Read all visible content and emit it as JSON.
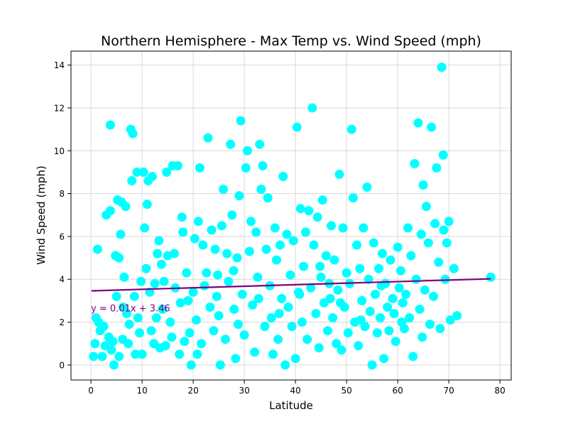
{
  "chart_data": {
    "type": "scatter",
    "title": "Northern Hemisphere - Max Temp vs. Wind Speed (mph)",
    "xlabel": "Latitude",
    "ylabel": "Wind Speed (mph)",
    "xlim": [
      -3.9,
      82.2
    ],
    "ylim": [
      -0.7,
      14.65
    ],
    "xticks": [
      0,
      10,
      20,
      30,
      40,
      50,
      60,
      70,
      80
    ],
    "yticks": [
      0,
      2,
      4,
      6,
      8,
      10,
      12,
      14
    ],
    "grid": true,
    "point_color": "#00ffff",
    "regression": {
      "slope": 0.0072,
      "intercept": 3.46,
      "x_range": [
        0.1,
        78.2
      ],
      "label": "y = 0.01x + 3.46",
      "label_color": "#800080",
      "line_color": "#800080"
    },
    "points": [
      [
        0.5,
        0.4
      ],
      [
        0.8,
        1.0
      ],
      [
        1.0,
        2.2
      ],
      [
        1.3,
        5.4
      ],
      [
        1.5,
        2.0
      ],
      [
        1.8,
        1.6
      ],
      [
        2.2,
        0.4
      ],
      [
        2.5,
        1.8
      ],
      [
        3.0,
        7.0
      ],
      [
        3.5,
        1.3
      ],
      [
        3.8,
        7.2
      ],
      [
        3.8,
        11.2
      ],
      [
        4.0,
        0.7
      ],
      [
        4.3,
        1.1
      ],
      [
        4.5,
        0.0
      ],
      [
        4.8,
        5.1
      ],
      [
        5.0,
        3.2
      ],
      [
        5.2,
        7.7
      ],
      [
        5.5,
        0.4
      ],
      [
        5.5,
        5.0
      ],
      [
        5.8,
        6.1
      ],
      [
        6.0,
        7.6
      ],
      [
        6.2,
        1.2
      ],
      [
        6.5,
        4.1
      ],
      [
        6.8,
        7.4
      ],
      [
        7.0,
        2.4
      ],
      [
        7.3,
        1.0
      ],
      [
        7.5,
        1.9
      ],
      [
        7.8,
        11.0
      ],
      [
        8.0,
        8.6
      ],
      [
        8.2,
        10.8
      ],
      [
        8.5,
        3.2
      ],
      [
        8.7,
        0.5
      ],
      [
        9.0,
        9.0
      ],
      [
        9.2,
        2.2
      ],
      [
        9.5,
        1.5
      ],
      [
        10.0,
        0.5
      ],
      [
        10.3,
        9.0
      ],
      [
        10.5,
        6.4
      ],
      [
        10.8,
        4.5
      ],
      [
        11.0,
        7.5
      ],
      [
        11.2,
        8.6
      ],
      [
        11.5,
        3.4
      ],
      [
        11.8,
        1.6
      ],
      [
        12.0,
        8.8
      ],
      [
        12.3,
        1.0
      ],
      [
        12.5,
        3.8
      ],
      [
        12.8,
        2.2
      ],
      [
        13.0,
        5.2
      ],
      [
        13.3,
        5.8
      ],
      [
        13.5,
        0.8
      ],
      [
        14.0,
        2.6
      ],
      [
        14.3,
        3.9
      ],
      [
        14.8,
        9.0
      ],
      [
        15.0,
        5.1
      ],
      [
        15.5,
        2.0
      ],
      [
        15.8,
        1.3
      ],
      [
        16.0,
        9.3
      ],
      [
        16.3,
        5.2
      ],
      [
        16.5,
        3.6
      ],
      [
        17.0,
        9.3
      ],
      [
        17.3,
        0.5
      ],
      [
        17.8,
        6.9
      ],
      [
        18.0,
        6.2
      ],
      [
        18.3,
        1.1
      ],
      [
        18.7,
        4.3
      ],
      [
        19.0,
        3.0
      ],
      [
        19.3,
        1.5
      ],
      [
        19.6,
        0.0
      ],
      [
        20.0,
        3.4
      ],
      [
        20.3,
        5.9
      ],
      [
        20.6,
        2.1
      ],
      [
        21.0,
        6.7
      ],
      [
        21.3,
        9.2
      ],
      [
        21.6,
        1.0
      ],
      [
        21.9,
        5.6
      ],
      [
        22.2,
        3.7
      ],
      [
        22.6,
        4.3
      ],
      [
        22.9,
        10.6
      ],
      [
        23.3,
        2.7
      ],
      [
        23.6,
        6.3
      ],
      [
        24.0,
        1.6
      ],
      [
        24.3,
        5.4
      ],
      [
        24.6,
        3.2
      ],
      [
        25.0,
        2.3
      ],
      [
        25.3,
        0.0
      ],
      [
        25.6,
        6.5
      ],
      [
        25.9,
        8.2
      ],
      [
        26.3,
        1.2
      ],
      [
        26.6,
        5.2
      ],
      [
        26.9,
        3.9
      ],
      [
        27.3,
        10.3
      ],
      [
        27.6,
        7.0
      ],
      [
        28.0,
        2.6
      ],
      [
        28.3,
        0.3
      ],
      [
        28.6,
        5.0
      ],
      [
        29.0,
        7.9
      ],
      [
        29.3,
        11.4
      ],
      [
        29.6,
        3.3
      ],
      [
        30.0,
        1.4
      ],
      [
        30.3,
        9.2
      ],
      [
        30.6,
        10.0
      ],
      [
        31.0,
        5.3
      ],
      [
        31.3,
        6.7
      ],
      [
        31.6,
        2.8
      ],
      [
        32.0,
        0.6
      ],
      [
        32.3,
        6.2
      ],
      [
        32.6,
        4.1
      ],
      [
        33.0,
        10.3
      ],
      [
        33.3,
        8.2
      ],
      [
        33.6,
        9.3
      ],
      [
        34.0,
        1.8
      ],
      [
        34.3,
        5.4
      ],
      [
        34.6,
        7.8
      ],
      [
        35.0,
        3.7
      ],
      [
        35.3,
        2.2
      ],
      [
        35.6,
        0.5
      ],
      [
        36.0,
        6.4
      ],
      [
        36.3,
        4.9
      ],
      [
        36.6,
        1.2
      ],
      [
        37.0,
        5.6
      ],
      [
        37.3,
        3.1
      ],
      [
        37.6,
        8.8
      ],
      [
        38.0,
        0.0
      ],
      [
        38.3,
        6.1
      ],
      [
        38.6,
        2.7
      ],
      [
        39.0,
        4.2
      ],
      [
        39.3,
        1.8
      ],
      [
        39.6,
        5.8
      ],
      [
        40.0,
        0.3
      ],
      [
        40.3,
        11.1
      ],
      [
        40.6,
        3.4
      ],
      [
        41.0,
        7.3
      ],
      [
        41.3,
        2.0
      ],
      [
        41.6,
        4.6
      ],
      [
        42.0,
        6.2
      ],
      [
        42.3,
        1.2
      ],
      [
        42.6,
        7.2
      ],
      [
        43.0,
        3.6
      ],
      [
        43.3,
        12.0
      ],
      [
        43.6,
        5.6
      ],
      [
        44.0,
        2.4
      ],
      [
        44.3,
        6.9
      ],
      [
        44.6,
        0.8
      ],
      [
        45.0,
        4.1
      ],
      [
        45.3,
        7.7
      ],
      [
        45.6,
        2.9
      ],
      [
        46.0,
        5.1
      ],
      [
        46.3,
        1.6
      ],
      [
        46.6,
        3.8
      ],
      [
        47.0,
        6.5
      ],
      [
        47.3,
        2.2
      ],
      [
        47.6,
        4.9
      ],
      [
        48.0,
        1.0
      ],
      [
        48.3,
        3.5
      ],
      [
        48.6,
        8.9
      ],
      [
        49.0,
        0.7
      ],
      [
        49.3,
        6.4
      ],
      [
        49.6,
        2.7
      ],
      [
        50.0,
        4.3
      ],
      [
        50.3,
        1.5
      ],
      [
        50.6,
        3.8
      ],
      [
        51.0,
        11.0
      ],
      [
        51.3,
        7.8
      ],
      [
        51.6,
        2.0
      ],
      [
        52.0,
        5.6
      ],
      [
        52.3,
        0.9
      ],
      [
        52.6,
        4.5
      ],
      [
        53.0,
        3.0
      ],
      [
        53.3,
        6.4
      ],
      [
        53.6,
        1.8
      ],
      [
        54.0,
        8.3
      ],
      [
        54.3,
        4.0
      ],
      [
        54.6,
        2.5
      ],
      [
        55.0,
        0.0
      ],
      [
        55.3,
        5.7
      ],
      [
        55.6,
        3.3
      ],
      [
        56.0,
        1.5
      ],
      [
        56.3,
        4.5
      ],
      [
        56.6,
        2.2
      ],
      [
        57.0,
        5.2
      ],
      [
        57.3,
        0.3
      ],
      [
        57.6,
        3.8
      ],
      [
        58.0,
        2.7
      ],
      [
        58.3,
        1.6
      ],
      [
        58.6,
        4.9
      ],
      [
        59.0,
        3.1
      ],
      [
        59.3,
        2.4
      ],
      [
        59.6,
        1.1
      ],
      [
        60.0,
        5.5
      ],
      [
        60.3,
        3.6
      ],
      [
        60.6,
        4.4
      ],
      [
        61.0,
        2.9
      ],
      [
        61.3,
        1.7
      ],
      [
        61.6,
        3.3
      ],
      [
        62.0,
        6.4
      ],
      [
        62.3,
        2.2
      ],
      [
        62.6,
        5.1
      ],
      [
        63.0,
        0.4
      ],
      [
        63.3,
        9.4
      ],
      [
        63.6,
        4.0
      ],
      [
        64.0,
        11.3
      ],
      [
        64.3,
        2.6
      ],
      [
        64.6,
        6.1
      ],
      [
        65.0,
        8.4
      ],
      [
        65.3,
        3.5
      ],
      [
        65.6,
        7.4
      ],
      [
        66.0,
        5.7
      ],
      [
        66.3,
        1.9
      ],
      [
        66.6,
        11.1
      ],
      [
        67.0,
        3.2
      ],
      [
        67.3,
        6.6
      ],
      [
        67.6,
        9.2
      ],
      [
        68.0,
        4.8
      ],
      [
        68.3,
        1.7
      ],
      [
        68.6,
        13.9
      ],
      [
        68.9,
        9.8
      ],
      [
        69.0,
        6.3
      ],
      [
        69.3,
        4.0
      ],
      [
        69.6,
        5.7
      ],
      [
        70.0,
        6.7
      ],
      [
        70.3,
        2.1
      ],
      [
        71.0,
        4.5
      ],
      [
        71.6,
        2.3
      ],
      [
        78.2,
        4.1
      ],
      [
        2.8,
        0.9
      ],
      [
        6.3,
        2.7
      ],
      [
        9.8,
        3.9
      ],
      [
        13.8,
        4.7
      ],
      [
        17.5,
        2.9
      ],
      [
        20.8,
        0.5
      ],
      [
        24.8,
        4.2
      ],
      [
        28.8,
        1.9
      ],
      [
        32.8,
        3.1
      ],
      [
        36.8,
        2.4
      ],
      [
        40.8,
        3.3
      ],
      [
        44.8,
        4.6
      ],
      [
        48.8,
        2.9
      ],
      [
        52.8,
        2.1
      ],
      [
        56.8,
        3.7
      ],
      [
        60.8,
        2.0
      ],
      [
        64.8,
        1.3
      ],
      [
        14.6,
        0.9
      ],
      [
        27.9,
        4.4
      ],
      [
        46.8,
        3.1
      ]
    ]
  }
}
